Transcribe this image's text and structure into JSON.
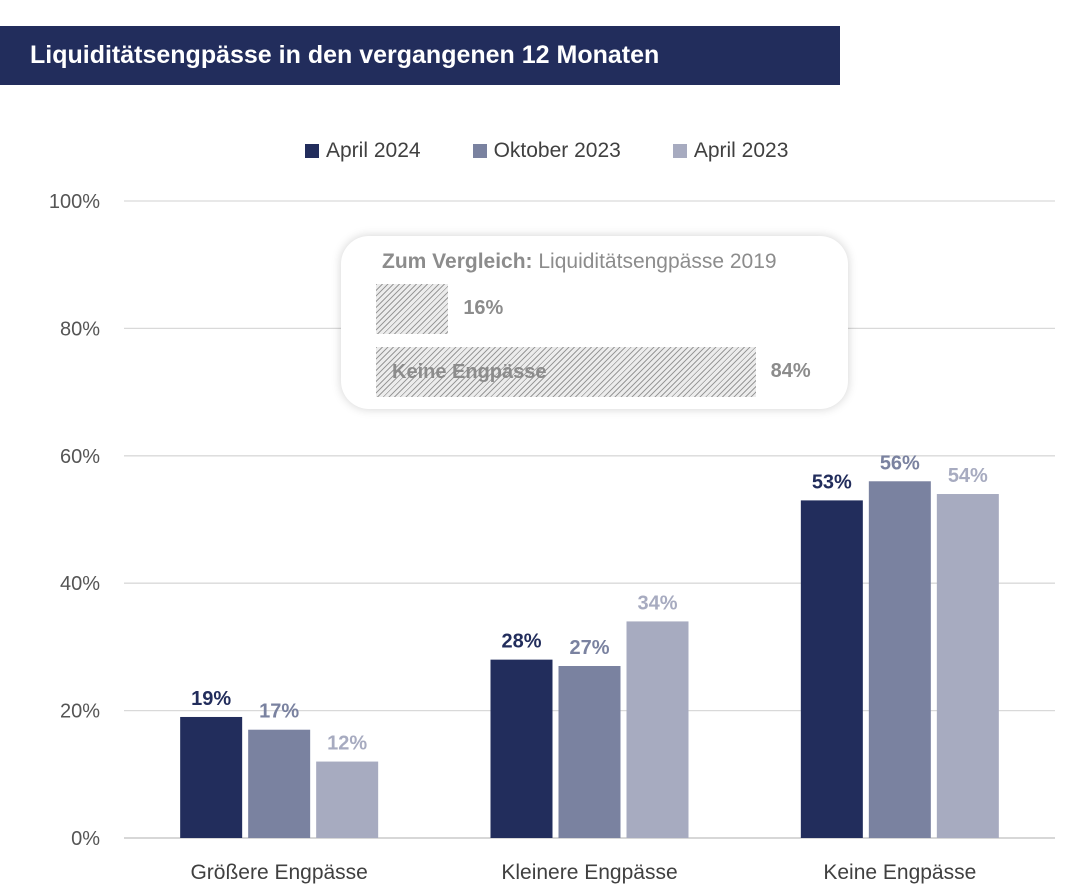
{
  "title": "Liquiditätsengpässe in den vergangenen 12 Monaten",
  "chart_data": {
    "type": "bar",
    "title": "Liquiditätsengpässe in den vergangenen 12 Monaten",
    "categories": [
      "Größere Engpässe",
      "Kleinere Engpässe",
      "Keine Engpässe"
    ],
    "series": [
      {
        "name": "April 2024",
        "color": "#222d5c",
        "values": [
          19,
          28,
          53
        ],
        "labels": [
          "19%",
          "28%",
          "53%"
        ]
      },
      {
        "name": "Oktober 2023",
        "color": "#7a82a0",
        "values": [
          17,
          27,
          56
        ],
        "labels": [
          "17%",
          "27%",
          "56%"
        ]
      },
      {
        "name": "April 2023",
        "color": "#a7abc0",
        "values": [
          12,
          34,
          54
        ],
        "labels": [
          "12%",
          "34%",
          "54%"
        ]
      }
    ],
    "ylim": [
      0,
      100
    ],
    "yticks": [
      "0%",
      "20%",
      "40%",
      "60%",
      "80%",
      "100%"
    ],
    "grid": true,
    "legend_position": "top"
  },
  "inset": {
    "title_bold": "Zum Vergleich:",
    "title_rest": " Liquiditätsengpässe 2019",
    "bars": [
      {
        "label": "",
        "value": 16,
        "value_label": "16%"
      },
      {
        "label": "Keine Engpässe",
        "value": 84,
        "value_label": "84%"
      }
    ]
  }
}
